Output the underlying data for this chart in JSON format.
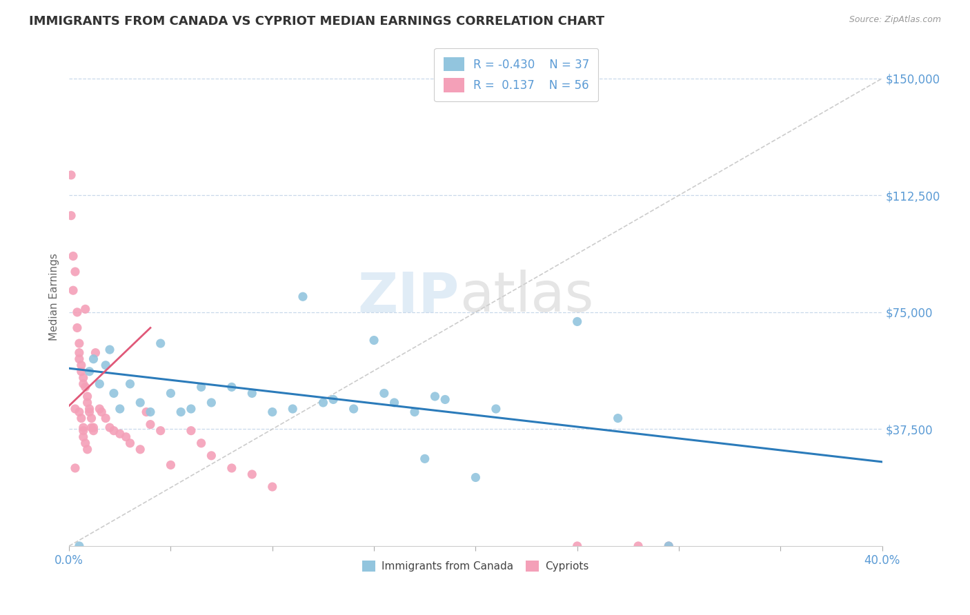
{
  "title": "IMMIGRANTS FROM CANADA VS CYPRIOT MEDIAN EARNINGS CORRELATION CHART",
  "source_text": "Source: ZipAtlas.com",
  "ylabel": "Median Earnings",
  "xlim": [
    0.0,
    0.4
  ],
  "ylim": [
    0,
    160000
  ],
  "yticks": [
    37500,
    75000,
    112500,
    150000
  ],
  "ytick_labels": [
    "$37,500",
    "$75,000",
    "$112,500",
    "$150,000"
  ],
  "xticks": [
    0.0,
    0.05,
    0.1,
    0.15,
    0.2,
    0.25,
    0.3,
    0.35,
    0.4
  ],
  "xtick_labels_show": [
    "0.0%",
    "",
    "",
    "",
    "",
    "",
    "",
    "",
    "40.0%"
  ],
  "color_blue": "#92c5de",
  "color_pink": "#f4a0b8",
  "color_blue_line": "#2b7bba",
  "color_pink_line": "#e05878",
  "color_diag": "#cccccc",
  "color_axis_label": "#5b9bd5",
  "blue_line_x0": 0.0,
  "blue_line_y0": 57000,
  "blue_line_x1": 0.4,
  "blue_line_y1": 27000,
  "pink_line_x0": 0.0,
  "pink_line_y0": 45000,
  "pink_line_x1": 0.04,
  "pink_line_y1": 70000,
  "blue_scatter_x": [
    0.005,
    0.01,
    0.012,
    0.015,
    0.018,
    0.02,
    0.022,
    0.025,
    0.03,
    0.035,
    0.04,
    0.045,
    0.05,
    0.055,
    0.06,
    0.065,
    0.07,
    0.08,
    0.09,
    0.1,
    0.11,
    0.115,
    0.125,
    0.13,
    0.14,
    0.155,
    0.16,
    0.17,
    0.175,
    0.185,
    0.2,
    0.21,
    0.25,
    0.27,
    0.295,
    0.15,
    0.18
  ],
  "blue_scatter_y": [
    0,
    56000,
    60000,
    52000,
    58000,
    63000,
    49000,
    44000,
    52000,
    46000,
    43000,
    65000,
    49000,
    43000,
    44000,
    51000,
    46000,
    51000,
    49000,
    43000,
    44000,
    80000,
    46000,
    47000,
    44000,
    49000,
    46000,
    43000,
    28000,
    47000,
    22000,
    44000,
    72000,
    41000,
    0,
    66000,
    48000
  ],
  "pink_scatter_x": [
    0.001,
    0.001,
    0.002,
    0.003,
    0.004,
    0.004,
    0.005,
    0.005,
    0.005,
    0.006,
    0.006,
    0.007,
    0.007,
    0.008,
    0.008,
    0.009,
    0.009,
    0.01,
    0.01,
    0.011,
    0.011,
    0.012,
    0.012,
    0.013,
    0.015,
    0.016,
    0.018,
    0.02,
    0.022,
    0.025,
    0.028,
    0.03,
    0.035,
    0.038,
    0.04,
    0.045,
    0.05,
    0.06,
    0.065,
    0.07,
    0.08,
    0.09,
    0.1,
    0.25,
    0.28,
    0.295,
    0.003,
    0.005,
    0.006,
    0.007,
    0.007,
    0.007,
    0.008,
    0.009,
    0.002,
    0.003
  ],
  "pink_scatter_y": [
    119000,
    106000,
    93000,
    88000,
    75000,
    70000,
    65000,
    62000,
    60000,
    58000,
    56000,
    54000,
    52000,
    51000,
    76000,
    48000,
    46000,
    44000,
    43000,
    41000,
    38000,
    37000,
    38000,
    62000,
    44000,
    43000,
    41000,
    38000,
    37000,
    36000,
    35000,
    33000,
    31000,
    43000,
    39000,
    37000,
    26000,
    37000,
    33000,
    29000,
    25000,
    23000,
    19000,
    0,
    0,
    0,
    44000,
    43000,
    41000,
    38000,
    37000,
    35000,
    33000,
    31000,
    82000,
    25000
  ]
}
